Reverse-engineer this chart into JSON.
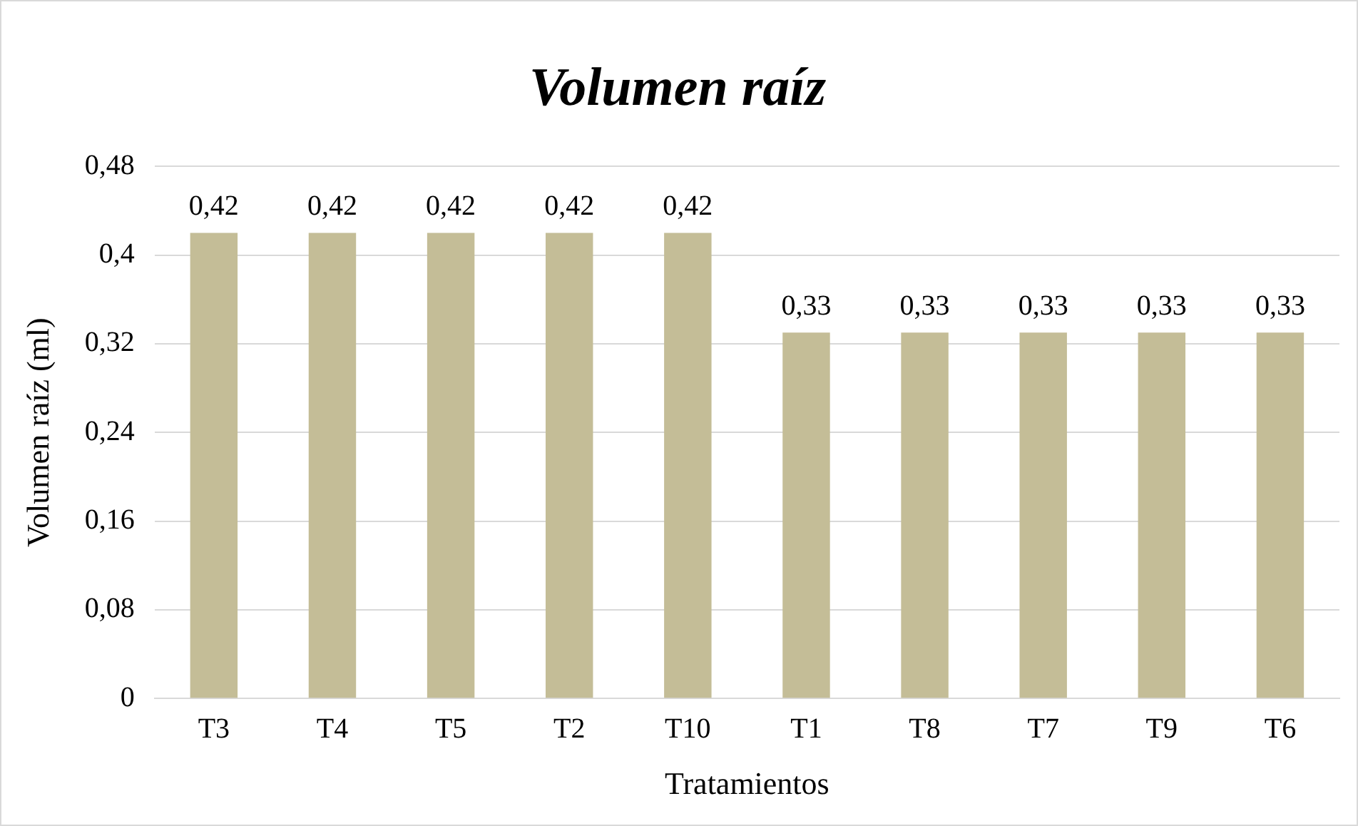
{
  "chart_data": {
    "type": "bar",
    "title": "Volumen raíz",
    "xlabel": "Tratamientos",
    "ylabel": "Volumen raíz (ml)",
    "categories": [
      "T3",
      "T4",
      "T5",
      "T2",
      "T10",
      "T1",
      "T8",
      "T7",
      "T9",
      "T6"
    ],
    "values": [
      0.42,
      0.42,
      0.42,
      0.42,
      0.42,
      0.33,
      0.33,
      0.33,
      0.33,
      0.33
    ],
    "value_labels": [
      "0,42",
      "0,42",
      "0,42",
      "0,42",
      "0,42",
      "0,33",
      "0,33",
      "0,33",
      "0,33",
      "0,33"
    ],
    "color": "#c4bd97",
    "ylim": [
      0,
      0.48
    ],
    "yticks": [
      0,
      {
        "value": 0.08,
        "label": "0,08"
      },
      {
        "value": 0.16,
        "label": "0,16"
      },
      {
        "value": 0.24,
        "label": "0,24"
      },
      {
        "value": 0.32,
        "label": "0,32"
      },
      {
        "value": 0.4,
        "label": "0,4"
      },
      {
        "value": 0.48,
        "label": "0,48"
      }
    ],
    "grid": "y",
    "legend": false
  }
}
